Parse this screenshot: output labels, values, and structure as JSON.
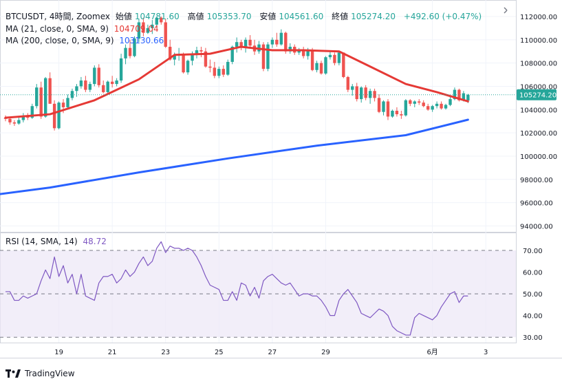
{
  "legend": {
    "symbol": "BTCUSDT, 4時間, Zoomex",
    "open_label": "始値",
    "open": "104781.60",
    "high_label": "高値",
    "high": "105353.70",
    "low_label": "安値",
    "low": "104561.60",
    "close_label": "終値",
    "close": "105274.20",
    "change": "+492.60 (+0.47%)",
    "ma21_label": "MA (21, close, 0, SMA, 9)",
    "ma21_value": "104709.04",
    "ma200_label": "MA (200, close, 0, SMA, 9)",
    "ma200_value": "103130.66",
    "rsi_label": "RSI (14, SMA, 14)",
    "rsi_value": "48.72"
  },
  "footer": {
    "brand": "TradingView"
  },
  "colors": {
    "up": "#26a69a",
    "down": "#ef5350",
    "ma21": "#e53935",
    "ma200": "#2962ff",
    "rsi": "#7e57c2",
    "rsi_band": "#ede7f6"
  },
  "chart_data": [
    {
      "type": "candlestick",
      "title": "BTCUSDT, 4時間, Zoomex",
      "x_ticks": [
        "19",
        "21",
        "23",
        "25",
        "27",
        "29",
        "6月",
        "3"
      ],
      "y_ticks": [
        94000,
        96000,
        98000,
        100000,
        102000,
        104000,
        106000,
        108000,
        110000,
        112000
      ],
      "ylim": [
        93000,
        113200
      ],
      "last_price": 105274.2,
      "last_price_label": "105274.20",
      "grid": true,
      "candles": [
        [
          103300,
          103500,
          103000,
          103200
        ],
        [
          103200,
          103300,
          102700,
          102900
        ],
        [
          102900,
          103100,
          102600,
          102800
        ],
        [
          102800,
          103300,
          102700,
          103100
        ],
        [
          103100,
          103700,
          102900,
          103400
        ],
        [
          103400,
          103700,
          103100,
          103300
        ],
        [
          103300,
          104500,
          103200,
          104300
        ],
        [
          104300,
          106200,
          104100,
          105900
        ],
        [
          105900,
          106400,
          103200,
          103400
        ],
        [
          103400,
          106800,
          103300,
          106700
        ],
        [
          106700,
          107200,
          104500,
          104500
        ],
        [
          104500,
          104800,
          102200,
          102400
        ],
        [
          102400,
          104700,
          102300,
          104600
        ],
        [
          104600,
          104900,
          103700,
          104200
        ],
        [
          104200,
          105300,
          104000,
          105000
        ],
        [
          105000,
          105800,
          104800,
          105600
        ],
        [
          105600,
          106200,
          105100,
          106000
        ],
        [
          106000,
          106800,
          105800,
          106500
        ],
        [
          106500,
          106900,
          105500,
          105700
        ],
        [
          105700,
          106400,
          105500,
          106200
        ],
        [
          106200,
          107800,
          106000,
          107600
        ],
        [
          107600,
          107900,
          105900,
          106100
        ],
        [
          106100,
          106500,
          105400,
          105500
        ],
        [
          105500,
          106500,
          105300,
          106400
        ],
        [
          106400,
          106900,
          105900,
          106200
        ],
        [
          106200,
          106700,
          106000,
          106500
        ],
        [
          106500,
          108800,
          106300,
          108400
        ],
        [
          108400,
          109600,
          107900,
          109300
        ],
        [
          109300,
          110000,
          108400,
          108600
        ],
        [
          108600,
          110300,
          108500,
          110100
        ],
        [
          110100,
          111800,
          109800,
          111500
        ],
        [
          111500,
          111900,
          110300,
          110600
        ],
        [
          110600,
          111300,
          110500,
          111000
        ],
        [
          111000,
          111700,
          110500,
          111300
        ],
        [
          111300,
          112000,
          111000,
          111900
        ],
        [
          111900,
          112000,
          111300,
          111500
        ],
        [
          111500,
          111800,
          109300,
          109400
        ],
        [
          109400,
          110000,
          108200,
          108300
        ],
        [
          108300,
          108900,
          107800,
          108700
        ],
        [
          108700,
          109300,
          108200,
          108700
        ],
        [
          108700,
          108900,
          107100,
          107200
        ],
        [
          107200,
          108300,
          107000,
          108200
        ],
        [
          108200,
          109000,
          107800,
          108800
        ],
        [
          108800,
          109400,
          108400,
          109100
        ],
        [
          109100,
          109400,
          108500,
          109000
        ],
        [
          109000,
          109300,
          107600,
          107700
        ],
        [
          107700,
          108300,
          107200,
          107600
        ],
        [
          107600,
          108100,
          106700,
          106900
        ],
        [
          106900,
          107700,
          106700,
          107500
        ],
        [
          107500,
          107800,
          106800,
          107000
        ],
        [
          107000,
          108300,
          106900,
          108100
        ],
        [
          108100,
          109500,
          107900,
          109400
        ],
        [
          109400,
          110200,
          108900,
          109800
        ],
        [
          109800,
          110000,
          109100,
          109300
        ],
        [
          109300,
          110200,
          108900,
          110000
        ],
        [
          110000,
          110400,
          109300,
          109500
        ],
        [
          109500,
          110000,
          108700,
          109000
        ],
        [
          109000,
          109900,
          108800,
          109600
        ],
        [
          109600,
          109800,
          107300,
          107500
        ],
        [
          107500,
          109800,
          107300,
          109600
        ],
        [
          109600,
          110200,
          109300,
          110000
        ],
        [
          110000,
          110600,
          109400,
          109600
        ],
        [
          109600,
          110900,
          109500,
          110600
        ],
        [
          110600,
          110700,
          108800,
          109000
        ],
        [
          109000,
          109700,
          108800,
          109400
        ],
        [
          109400,
          109600,
          108700,
          108900
        ],
        [
          108900,
          109300,
          108700,
          109100
        ],
        [
          109100,
          109400,
          108400,
          108600
        ],
        [
          108600,
          109300,
          108300,
          109100
        ],
        [
          109100,
          109300,
          107300,
          107400
        ],
        [
          107400,
          108200,
          107200,
          108000
        ],
        [
          108000,
          108200,
          107000,
          107100
        ],
        [
          107100,
          108600,
          107000,
          108500
        ],
        [
          108500,
          109100,
          108300,
          108700
        ],
        [
          108700,
          108900,
          107800,
          108000
        ],
        [
          108000,
          109000,
          107800,
          108900
        ],
        [
          108900,
          108900,
          106700,
          106800
        ],
        [
          106800,
          106900,
          105500,
          105700
        ],
        [
          105700,
          106200,
          105200,
          106000
        ],
        [
          106000,
          106300,
          104700,
          104900
        ],
        [
          104900,
          106000,
          104600,
          105900
        ],
        [
          105900,
          106100,
          104800,
          105000
        ],
        [
          105000,
          105800,
          104500,
          105600
        ],
        [
          105600,
          105800,
          104700,
          105000
        ],
        [
          105000,
          105300,
          103700,
          103800
        ],
        [
          103800,
          104800,
          103500,
          104700
        ],
        [
          104700,
          104900,
          103100,
          103400
        ],
        [
          103400,
          104000,
          103300,
          103900
        ],
        [
          103900,
          104200,
          103400,
          103600
        ],
        [
          103600,
          103900,
          103200,
          103500
        ],
        [
          103500,
          104900,
          103400,
          104800
        ],
        [
          104800,
          104900,
          104300,
          104500
        ],
        [
          104500,
          104800,
          104200,
          104700
        ],
        [
          104700,
          104900,
          104400,
          104600
        ],
        [
          104600,
          104800,
          104200,
          104300
        ],
        [
          104300,
          104500,
          103900,
          104000
        ],
        [
          104000,
          104400,
          103800,
          104300
        ],
        [
          104300,
          104700,
          104100,
          104500
        ],
        [
          104500,
          104700,
          104000,
          104100
        ],
        [
          104100,
          104500,
          104000,
          104400
        ],
        [
          104400,
          105100,
          104300,
          104900
        ],
        [
          104900,
          105900,
          104800,
          105700
        ],
        [
          105700,
          105800,
          104700,
          104800
        ],
        [
          104800,
          105600,
          104700,
          105400
        ],
        [
          104781.6,
          105353.7,
          104561.6,
          105274.2
        ]
      ],
      "series": [
        {
          "name": "MA (21, close, 0, SMA, 9)",
          "points": [
            [
              0,
              103300
            ],
            [
              10,
              103600
            ],
            [
              20,
              104800
            ],
            [
              30,
              106600
            ],
            [
              38,
              108700
            ],
            [
              46,
              108800
            ],
            [
              53,
              109400
            ],
            [
              60,
              109100
            ],
            [
              67,
              109100
            ],
            [
              75,
              109000
            ],
            [
              82,
              107700
            ],
            [
              90,
              106200
            ],
            [
              97,
              105500
            ],
            [
              104,
              104709
            ]
          ]
        },
        {
          "name": "MA (200, close, 0, SMA, 9)",
          "points": [
            [
              -60,
              94600
            ],
            [
              -20,
              95800
            ],
            [
              10,
              97300
            ],
            [
              30,
              98600
            ],
            [
              50,
              99800
            ],
            [
              70,
              100900
            ],
            [
              90,
              101800
            ],
            [
              104,
              103130
            ]
          ]
        }
      ]
    },
    {
      "type": "line",
      "title": "RSI (14, SMA, 14)",
      "y_ticks": [
        30,
        40,
        50,
        60,
        70
      ],
      "ylim": [
        26,
        74
      ],
      "band": [
        30,
        70
      ],
      "midline": 50,
      "series": [
        {
          "name": "RSI (14, SMA, 14)",
          "values": [
            51,
            51,
            47,
            47,
            49,
            48,
            49,
            50,
            56,
            61,
            57,
            67,
            58,
            63,
            55,
            59,
            50,
            59,
            49,
            48,
            47,
            55,
            58,
            58,
            59,
            55,
            57,
            61,
            58,
            60,
            64,
            67,
            63,
            65,
            71,
            74,
            69,
            72,
            71,
            71,
            70,
            71,
            70,
            67,
            63,
            58,
            54,
            53,
            52,
            47,
            47,
            51,
            47,
            55,
            54,
            49,
            53,
            48,
            56,
            58,
            59,
            57,
            55,
            54,
            55,
            52,
            49,
            50,
            50,
            49,
            49,
            47,
            44,
            40,
            40,
            47,
            50,
            52,
            49,
            46,
            41,
            40,
            39,
            41,
            43,
            42,
            40,
            35,
            33,
            32,
            31,
            31,
            39,
            41,
            40,
            39,
            38,
            40,
            44,
            47,
            50,
            51,
            46,
            49,
            49
          ]
        }
      ]
    }
  ]
}
